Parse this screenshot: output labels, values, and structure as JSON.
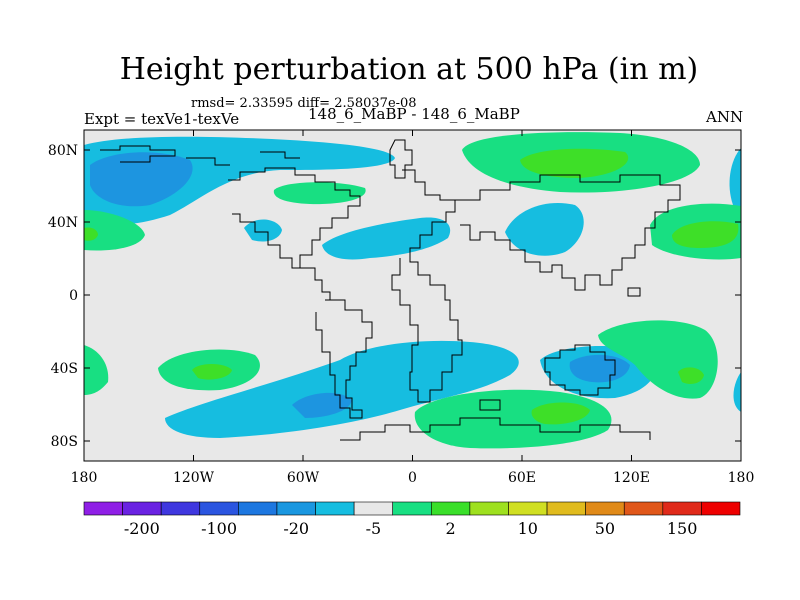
{
  "title": "Height perturbation at 500 hPa (in m)",
  "stats": "rmsd= 2.33595 diff= 2.58037e-08",
  "left_label": "Expt = texVe1-texVe",
  "center_label": "148_6_MaBP - 148_6_MaBP",
  "right_label": "ANN",
  "lat_ticks": [
    "80N",
    "40N",
    "0",
    "40S",
    "80S"
  ],
  "lon_ticks": [
    "180",
    "120W",
    "60W",
    "0",
    "60E",
    "120E",
    "180"
  ],
  "colorbar": {
    "colors": [
      "#8f1fe6",
      "#6a22e2",
      "#3f37df",
      "#2b55e0",
      "#1d77e0",
      "#1a97e0",
      "#16bde0",
      "#e8e8e8",
      "#18df82",
      "#3adf2a",
      "#9ee01f",
      "#d0df22",
      "#e0bb1e",
      "#e08a18",
      "#e0571a",
      "#e02a1a",
      "#ee0000"
    ],
    "labels": [
      "-200",
      "-100",
      "-20",
      "-5",
      "2",
      "10",
      "50",
      "150"
    ]
  },
  "colors": {
    "neutral": "#e8e8e8",
    "light_blue": "#16bde0",
    "mid_blue": "#1d95e0",
    "light_green": "#18df82",
    "mid_green": "#3edf28"
  }
}
